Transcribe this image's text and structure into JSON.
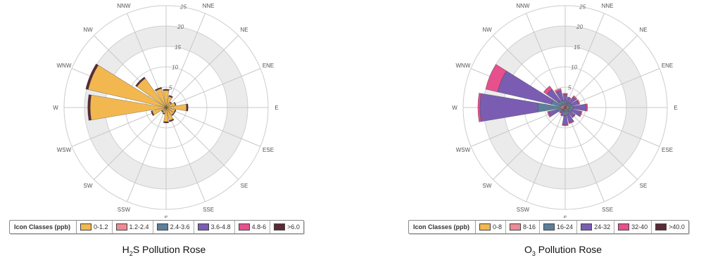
{
  "legend_colors": [
    "#f2b84f",
    "#ee8a95",
    "#5c7f9c",
    "#7a5db3",
    "#e6508c",
    "#5a2a35"
  ],
  "chart_data": [
    {
      "type": "rose",
      "title_prefix": "H",
      "title_sub": "2",
      "title_suffix": "S Pollution Rose",
      "directions": [
        "N",
        "NNE",
        "NE",
        "ENE",
        "E",
        "ESE",
        "SE",
        "SSE",
        "S",
        "SSW",
        "SW",
        "WSW",
        "W",
        "WNW",
        "NW",
        "NNW"
      ],
      "radial_ticks": [
        "5",
        "10",
        "15",
        "20",
        "25"
      ],
      "rmax": 25,
      "legend_title": "Icon Classes (ppb)",
      "classes": [
        "0-1.2",
        "1.2-2.4",
        "2.4-3.6",
        "3.6-4.8",
        "4.8-6",
        ">6.0"
      ],
      "sectors": [
        {
          "dir": "N",
          "values": [
            4.2,
            0,
            0,
            0,
            0,
            0.3
          ]
        },
        {
          "dir": "NNE",
          "values": [
            2.8,
            0,
            0,
            0,
            0,
            0.3
          ]
        },
        {
          "dir": "NE",
          "values": [
            1.5,
            0,
            0,
            0,
            0,
            0.2
          ]
        },
        {
          "dir": "ENE",
          "values": [
            2.3,
            0,
            0,
            0,
            0,
            0.2
          ]
        },
        {
          "dir": "E",
          "values": [
            5.0,
            0,
            0,
            0,
            0,
            0.4
          ]
        },
        {
          "dir": "ESE",
          "values": [
            2.3,
            0,
            0,
            0,
            0,
            0.2
          ]
        },
        {
          "dir": "SE",
          "values": [
            2.3,
            0,
            0,
            0,
            0,
            0.2
          ]
        },
        {
          "dir": "SSE",
          "values": [
            3.3,
            0,
            0,
            0,
            0,
            0.3
          ]
        },
        {
          "dir": "S",
          "values": [
            3.5,
            0,
            0,
            0,
            0,
            0.3
          ]
        },
        {
          "dir": "SSW",
          "values": [
            1.5,
            0,
            0,
            0,
            0,
            0.2
          ]
        },
        {
          "dir": "SW",
          "values": [
            1.2,
            0,
            0,
            0,
            0,
            0.2
          ]
        },
        {
          "dir": "WSW",
          "values": [
            3.5,
            0,
            0,
            0,
            0,
            0.3
          ]
        },
        {
          "dir": "W",
          "values": [
            18.6,
            0,
            0,
            0,
            0,
            0.6
          ]
        },
        {
          "dir": "WNW",
          "values": [
            19.6,
            0,
            0,
            0,
            0,
            0.6
          ]
        },
        {
          "dir": "NW",
          "values": [
            8.8,
            0,
            0,
            0,
            0,
            0.4
          ]
        },
        {
          "dir": "NNW",
          "values": [
            4.8,
            0,
            0,
            0,
            0,
            0.3
          ]
        }
      ]
    },
    {
      "type": "rose",
      "title_prefix": "O",
      "title_sub": "3",
      "title_suffix": " Pollution Rose",
      "directions": [
        "N",
        "NNE",
        "NE",
        "ENE",
        "E",
        "ESE",
        "SE",
        "SSE",
        "S",
        "SSW",
        "SW",
        "WSW",
        "W",
        "WNW",
        "NW",
        "NNW"
      ],
      "radial_ticks": [
        "5",
        "10",
        "15",
        "20",
        "25"
      ],
      "rmax": 25,
      "legend_title": "Icon Classes (ppb)",
      "classes": [
        "0-8",
        "8-16",
        "16-24",
        "24-32",
        "32-40",
        ">40.0"
      ],
      "sectors": [
        {
          "dir": "N",
          "values": [
            0,
            0.8,
            0.8,
            1.6,
            0.3,
            0
          ]
        },
        {
          "dir": "NNE",
          "values": [
            0,
            0.5,
            0.6,
            1.4,
            0.2,
            0
          ]
        },
        {
          "dir": "NE",
          "values": [
            0,
            0.6,
            0.8,
            1.8,
            0.4,
            0
          ]
        },
        {
          "dir": "ENE",
          "values": [
            0,
            0.8,
            0.8,
            1.8,
            0.3,
            0
          ]
        },
        {
          "dir": "E",
          "values": [
            0,
            1.0,
            1.0,
            3.2,
            0.3,
            0
          ]
        },
        {
          "dir": "ESE",
          "values": [
            0,
            0.8,
            1.0,
            2.2,
            0.3,
            0
          ]
        },
        {
          "dir": "SE",
          "values": [
            0,
            0.5,
            0.8,
            1.6,
            0.2,
            0
          ]
        },
        {
          "dir": "SSE",
          "values": [
            0,
            0.8,
            1.0,
            2.0,
            0.3,
            0
          ]
        },
        {
          "dir": "S",
          "values": [
            0,
            0.8,
            1.2,
            2.2,
            0.3,
            0
          ]
        },
        {
          "dir": "SSW",
          "values": [
            0,
            0.4,
            0.6,
            1.0,
            0.2,
            0
          ]
        },
        {
          "dir": "SW",
          "values": [
            0,
            0.3,
            0.5,
            0.8,
            0.2,
            0
          ]
        },
        {
          "dir": "WSW",
          "values": [
            0,
            0.8,
            1.2,
            2.2,
            0.3,
            0
          ]
        },
        {
          "dir": "W",
          "values": [
            0,
            1.2,
            5.5,
            14.2,
            0.5,
            0
          ]
        },
        {
          "dir": "WNW",
          "values": [
            0,
            1.0,
            2.5,
            13.5,
            3.0,
            0
          ]
        },
        {
          "dir": "NW",
          "values": [
            0,
            0.8,
            1.2,
            3.5,
            1.0,
            0
          ]
        },
        {
          "dir": "NNW",
          "values": [
            0,
            0.8,
            1.0,
            2.5,
            0.5,
            0
          ]
        }
      ]
    }
  ]
}
